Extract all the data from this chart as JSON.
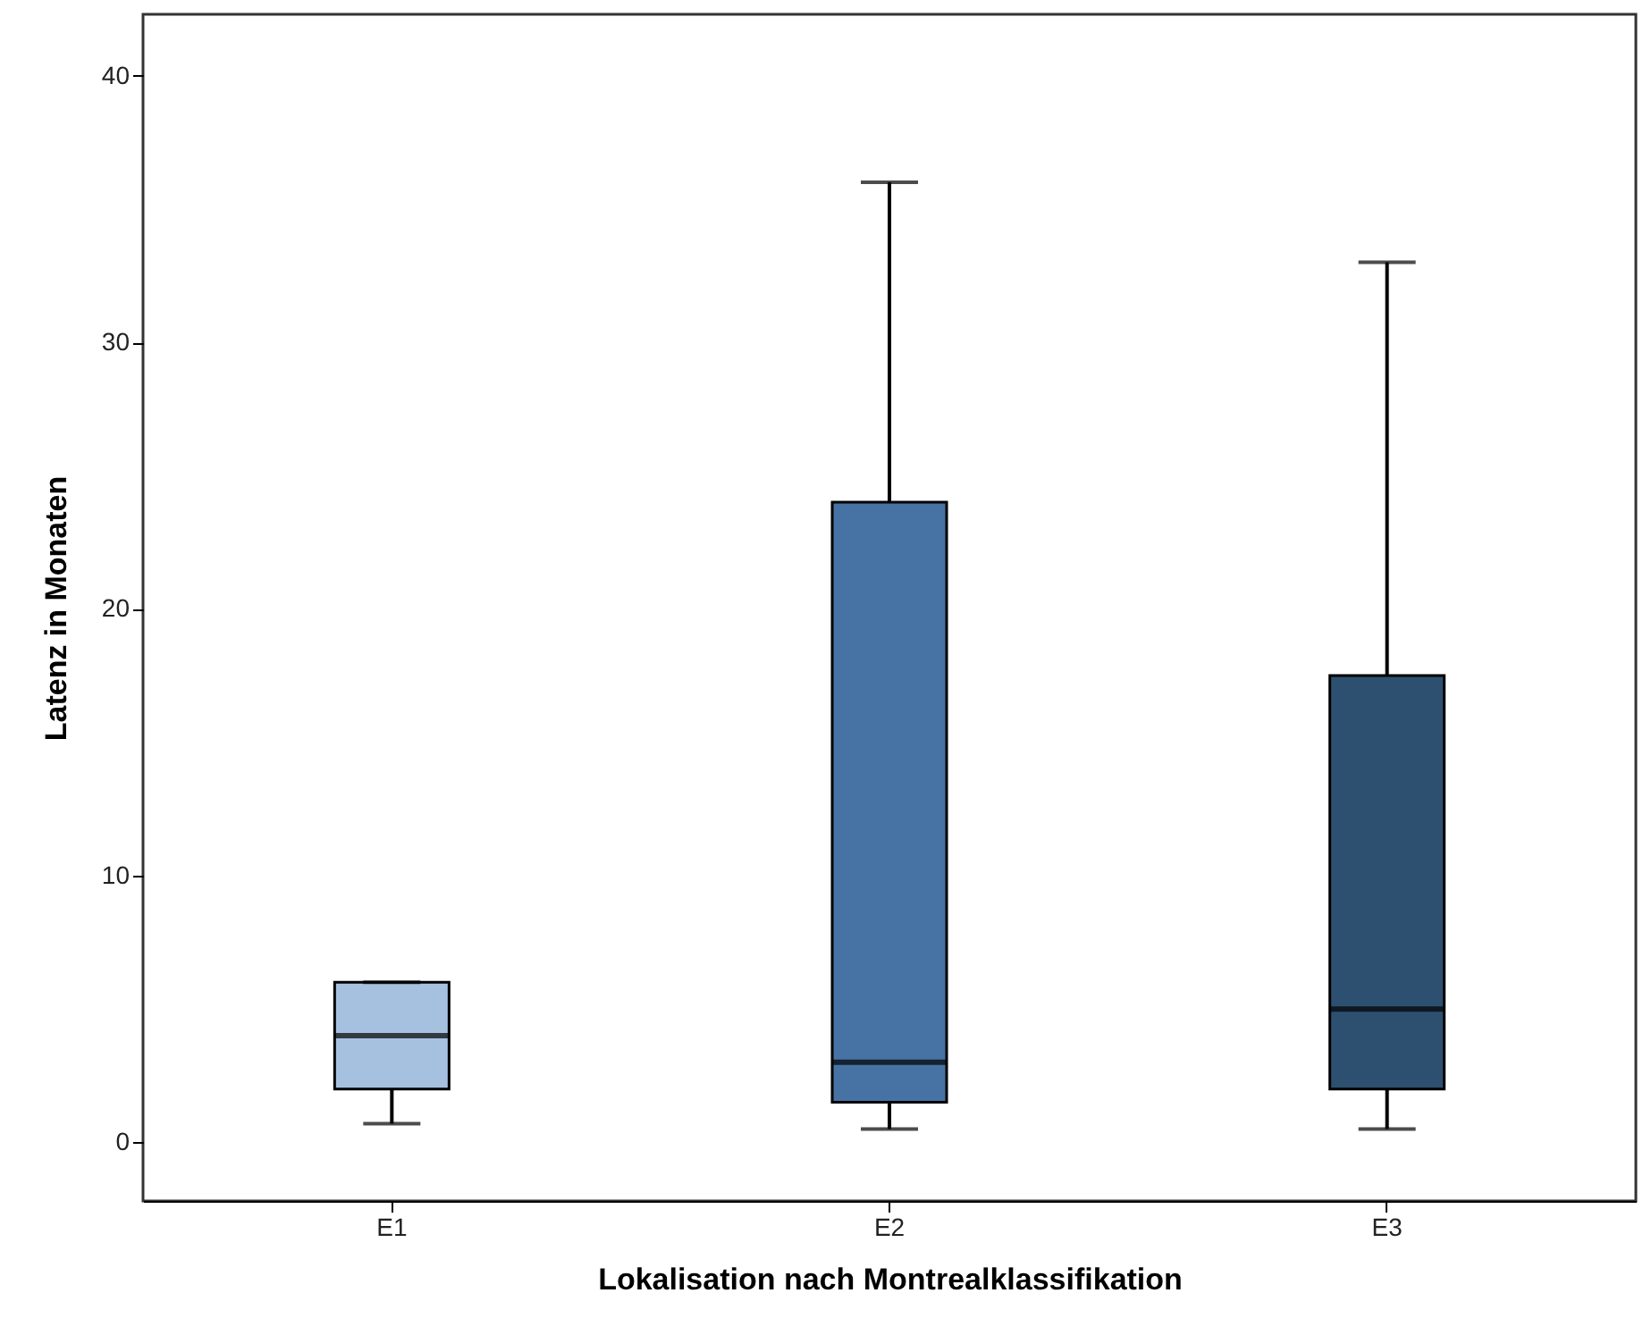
{
  "chart_data": {
    "type": "box",
    "xlabel": "Lokalisation nach Montrealklassifikation",
    "ylabel": "Latenz in Monaten",
    "categories": [
      "E1",
      "E2",
      "E3"
    ],
    "boxes": [
      {
        "low": 0.7,
        "q1": 2,
        "median": 4,
        "q3": 6,
        "high": 6
      },
      {
        "low": 0.5,
        "q1": 1.5,
        "median": 3,
        "q3": 24,
        "high": 36
      },
      {
        "low": 0.5,
        "q1": 2,
        "median": 5,
        "q3": 17.5,
        "high": 33
      }
    ],
    "colors": [
      "#a6c0e0",
      "#4673a4",
      "#2e5070"
    ],
    "ylim": [
      -2.2,
      42.3
    ],
    "yticks": [
      0,
      10,
      20,
      30,
      40
    ],
    "grid": false
  }
}
